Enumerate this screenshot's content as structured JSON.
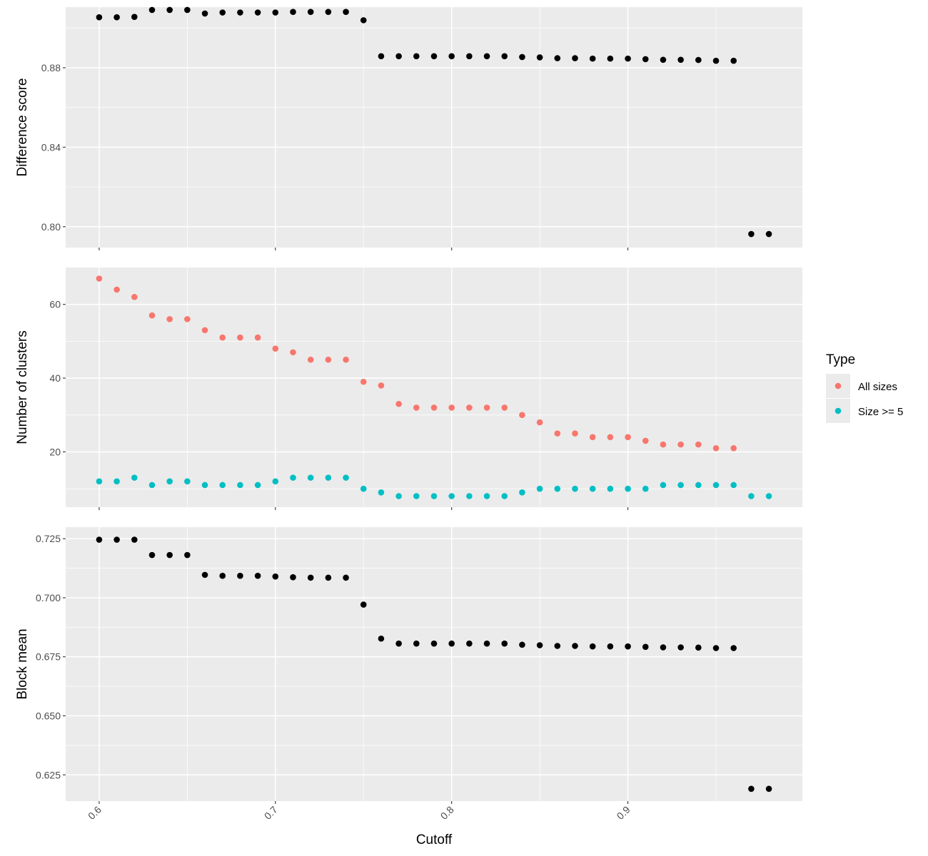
{
  "chart_data": {
    "type": "scatter",
    "xlabel": "Cutoff",
    "x_ticks": [
      "0.6",
      "0.7",
      "0.8",
      "0.9"
    ],
    "x_tick_values": [
      0.6,
      0.7,
      0.8,
      0.9
    ],
    "xlim": [
      0.581,
      0.999
    ],
    "legend": {
      "title": "Type",
      "placement": "right",
      "entries": [
        {
          "label": "All sizes",
          "color": "#F8766D"
        },
        {
          "label": "Size >= 5",
          "color": "#00BFC4"
        }
      ]
    },
    "panels": [
      {
        "id": "difference",
        "ylabel": "Difference score",
        "ylim": [
          0.7895,
          0.9105
        ],
        "y_ticks": [
          "0.80",
          "0.84",
          "0.88"
        ],
        "y_tick_values": [
          0.8,
          0.84,
          0.88
        ],
        "series": [
          {
            "color": "#000000",
            "x": [
              0.6,
              0.61,
              0.62,
              0.63,
              0.64,
              0.65,
              0.66,
              0.67,
              0.68,
              0.69,
              0.7,
              0.71,
              0.72,
              0.73,
              0.74,
              0.75,
              0.76,
              0.77,
              0.78,
              0.79,
              0.8,
              0.81,
              0.82,
              0.83,
              0.84,
              0.85,
              0.86,
              0.87,
              0.88,
              0.89,
              0.9,
              0.91,
              0.92,
              0.93,
              0.94,
              0.95,
              0.96,
              0.97,
              0.98
            ],
            "values": [
              0.9054,
              0.9054,
              0.9056,
              0.9091,
              0.9091,
              0.9091,
              0.9073,
              0.9078,
              0.9078,
              0.9078,
              0.9078,
              0.9081,
              0.9081,
              0.9081,
              0.9081,
              0.9039,
              0.8858,
              0.8858,
              0.8858,
              0.8858,
              0.8858,
              0.8858,
              0.8858,
              0.8858,
              0.8854,
              0.8852,
              0.8848,
              0.8848,
              0.8846,
              0.8846,
              0.8846,
              0.8843,
              0.884,
              0.884,
              0.8839,
              0.8835,
              0.8835,
              0.7963,
              0.7963
            ]
          }
        ]
      },
      {
        "id": "clusters",
        "ylabel": "Number of clusters",
        "ylim": [
          5,
          70
        ],
        "y_ticks": [
          "20",
          "40",
          "60"
        ],
        "y_tick_values": [
          20,
          40,
          60
        ],
        "series": [
          {
            "name": "All sizes",
            "color": "#F8766D",
            "x": [
              0.6,
              0.61,
              0.62,
              0.63,
              0.64,
              0.65,
              0.66,
              0.67,
              0.68,
              0.69,
              0.7,
              0.71,
              0.72,
              0.73,
              0.74,
              0.75,
              0.76,
              0.77,
              0.78,
              0.79,
              0.8,
              0.81,
              0.82,
              0.83,
              0.84,
              0.85,
              0.86,
              0.87,
              0.88,
              0.89,
              0.9,
              0.91,
              0.92,
              0.93,
              0.94,
              0.95,
              0.96
            ],
            "values": [
              67,
              64,
              62,
              57,
              56,
              56,
              53,
              51,
              51,
              51,
              48,
              47,
              45,
              45,
              45,
              39,
              38,
              33,
              32,
              32,
              32,
              32,
              32,
              32,
              30,
              28,
              25,
              25,
              24,
              24,
              24,
              23,
              22,
              22,
              22,
              21,
              21
            ]
          },
          {
            "name": "Size >= 5",
            "color": "#00BFC4",
            "x": [
              0.6,
              0.61,
              0.62,
              0.63,
              0.64,
              0.65,
              0.66,
              0.67,
              0.68,
              0.69,
              0.7,
              0.71,
              0.72,
              0.73,
              0.74,
              0.75,
              0.76,
              0.77,
              0.78,
              0.79,
              0.8,
              0.81,
              0.82,
              0.83,
              0.84,
              0.85,
              0.86,
              0.87,
              0.88,
              0.89,
              0.9,
              0.91,
              0.92,
              0.93,
              0.94,
              0.95,
              0.96,
              0.97,
              0.98
            ],
            "values": [
              12,
              12,
              13,
              11,
              12,
              12,
              11,
              11,
              11,
              11,
              12,
              13,
              13,
              13,
              13,
              10,
              9,
              8,
              8,
              8,
              8,
              8,
              8,
              8,
              9,
              10,
              10,
              10,
              10,
              10,
              10,
              10,
              11,
              11,
              11,
              11,
              11,
              8,
              8
            ]
          }
        ]
      },
      {
        "id": "blockmean",
        "ylabel": "Block mean",
        "ylim": [
          0.6139,
          0.7299
        ],
        "y_ticks": [
          "0.625",
          "0.650",
          "0.675",
          "0.700",
          "0.725"
        ],
        "y_tick_values": [
          0.625,
          0.65,
          0.675,
          0.7,
          0.725
        ],
        "series": [
          {
            "color": "#000000",
            "x": [
              0.6,
              0.61,
              0.62,
              0.63,
              0.64,
              0.65,
              0.66,
              0.67,
              0.68,
              0.69,
              0.7,
              0.71,
              0.72,
              0.73,
              0.74,
              0.75,
              0.76,
              0.77,
              0.78,
              0.79,
              0.8,
              0.81,
              0.82,
              0.83,
              0.84,
              0.85,
              0.86,
              0.87,
              0.88,
              0.89,
              0.9,
              0.91,
              0.92,
              0.93,
              0.94,
              0.95,
              0.96,
              0.97,
              0.98
            ],
            "values": [
              0.7246,
              0.7246,
              0.7246,
              0.7181,
              0.7181,
              0.7181,
              0.7097,
              0.7093,
              0.7093,
              0.7093,
              0.709,
              0.7087,
              0.7085,
              0.7085,
              0.7085,
              0.6971,
              0.6827,
              0.6806,
              0.6806,
              0.6806,
              0.6806,
              0.6806,
              0.6806,
              0.6806,
              0.6801,
              0.6799,
              0.6796,
              0.6796,
              0.6794,
              0.6794,
              0.6794,
              0.6792,
              0.679,
              0.679,
              0.6789,
              0.6787,
              0.6787,
              0.6191,
              0.6191
            ]
          }
        ]
      }
    ]
  }
}
